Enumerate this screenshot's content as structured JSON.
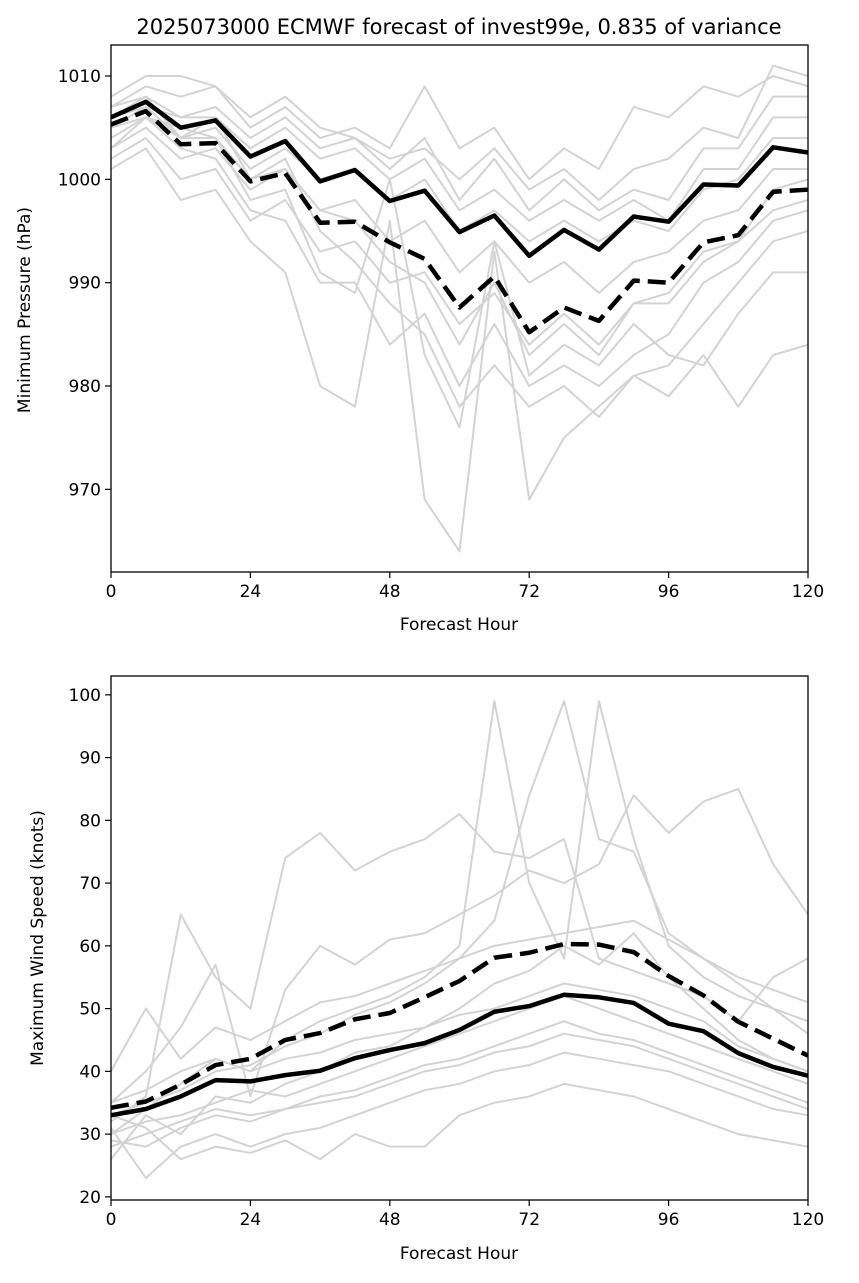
{
  "page_title": "2025073000 ECMWF forecast of invest99e, 0.835 of variance",
  "colors": {
    "ensemble": "#d3d3d3",
    "mean": "#000000",
    "axes": "#000000",
    "background": "#ffffff"
  },
  "chart_data": [
    {
      "type": "line",
      "title": "2025073000 ECMWF forecast of invest99e, 0.835 of variance",
      "xlabel": "Forecast Hour",
      "ylabel": "Minimum Pressure (hPa)",
      "xlim": [
        0,
        120
      ],
      "ylim": [
        962,
        1013
      ],
      "xticks": [
        0,
        24,
        48,
        72,
        96,
        120
      ],
      "yticks": [
        970,
        980,
        990,
        1000,
        1010
      ],
      "grid": false,
      "x": [
        0,
        6,
        12,
        18,
        24,
        30,
        36,
        42,
        48,
        54,
        60,
        66,
        72,
        78,
        84,
        90,
        96,
        102,
        108,
        114,
        120
      ],
      "mean_series": [
        {
          "style": "solid",
          "values": [
            1006.0,
            1007.5,
            1005.0,
            1005.7,
            1002.2,
            1003.7,
            999.8,
            1000.9,
            997.9,
            998.9,
            994.9,
            996.5,
            992.6,
            995.1,
            993.2,
            996.4,
            995.9,
            999.5,
            999.4,
            1003.1,
            1002.6
          ]
        },
        {
          "style": "dashed",
          "values": [
            1005.3,
            1006.6,
            1003.4,
            1003.5,
            999.8,
            1000.6,
            995.8,
            995.9,
            993.9,
            992.3,
            987.6,
            990.6,
            985.2,
            987.6,
            986.3,
            990.2,
            990.0,
            993.9,
            994.6,
            998.8,
            999.0
          ]
        }
      ],
      "members": [
        [
          1008,
          1010,
          1010,
          1009,
          1006,
          1008,
          1005,
          1004,
          1002,
          1003,
          1000,
          1003,
          999,
          1001,
          998,
          1001,
          1002,
          1005,
          1004,
          1011,
          1010
        ],
        [
          1007,
          1009,
          1008,
          1009,
          1005,
          1007,
          1004,
          1005,
          1003,
          1009,
          1003,
          1005,
          1000,
          1003,
          1001,
          1007,
          1006,
          1009,
          1008,
          1010,
          1009
        ],
        [
          1006,
          1008,
          1006,
          1007,
          1004,
          1006,
          1003,
          1004,
          1001,
          1004,
          998,
          1002,
          997,
          1000,
          997,
          999,
          998,
          1003,
          1003,
          1008,
          1008
        ],
        [
          1005,
          1007,
          1006,
          1006,
          1003,
          1005,
          1002,
          1003,
          1000,
          1002,
          997,
          999,
          996,
          998,
          996,
          998,
          996,
          1001,
          1001,
          1006,
          1006
        ],
        [
          1004,
          1006,
          1004,
          1005,
          1001,
          1003,
          1000,
          1001,
          998,
          1000,
          995,
          997,
          994,
          996,
          994,
          996,
          995,
          999,
          1000,
          1004,
          1004
        ],
        [
          1003,
          1005,
          1002,
          1003,
          999,
          1001,
          997,
          998,
          994,
          996,
          991,
          994,
          990,
          992,
          989,
          992,
          993,
          996,
          997,
          1001,
          1001
        ],
        [
          1002,
          1004,
          1000,
          1001,
          996,
          998,
          993,
          994,
          990,
          991,
          986,
          989,
          984,
          987,
          984,
          988,
          988,
          992,
          994,
          997,
          998
        ],
        [
          1001,
          1003,
          998,
          999,
          994,
          991,
          980,
          978,
          996,
          969,
          964,
          993,
          969,
          975,
          978,
          981,
          979,
          983,
          978,
          983,
          984
        ],
        [
          1007,
          1008,
          1004,
          1006,
          1000,
          1002,
          995,
          992,
          988,
          985,
          978,
          982,
          978,
          980,
          977,
          981,
          982,
          986,
          990,
          994,
          995
        ],
        [
          1005,
          1006,
          1003,
          1002,
          997,
          996,
          990,
          990,
          984,
          987,
          980,
          986,
          980,
          982,
          980,
          983,
          985,
          990,
          992,
          996,
          997
        ],
        [
          1006,
          1007,
          1004,
          1004,
          998,
          999,
          991,
          989,
          1000,
          983,
          976,
          994,
          981,
          984,
          982,
          986,
          983,
          982,
          987,
          991,
          991
        ],
        [
          1003,
          1006,
          1005,
          1004,
          1000,
          1001,
          997,
          996,
          992,
          990,
          984,
          990,
          983,
          986,
          983,
          988,
          989,
          993,
          994,
          999,
          1000
        ]
      ]
    },
    {
      "type": "line",
      "title": "",
      "xlabel": "Forecast Hour",
      "ylabel": "Maximum Wind Speed (knots)",
      "xlim": [
        0,
        120
      ],
      "ylim": [
        19.5,
        103
      ],
      "xticks": [
        0,
        24,
        48,
        72,
        96,
        120
      ],
      "yticks": [
        20,
        30,
        40,
        50,
        60,
        70,
        80,
        90,
        100
      ],
      "grid": false,
      "x": [
        0,
        6,
        12,
        18,
        24,
        30,
        36,
        42,
        48,
        54,
        60,
        66,
        72,
        78,
        84,
        90,
        96,
        102,
        108,
        114,
        120
      ],
      "mean_series": [
        {
          "style": "solid",
          "values": [
            33.0,
            34.0,
            36.0,
            38.6,
            38.4,
            39.4,
            40.1,
            42.1,
            43.4,
            44.5,
            46.6,
            49.5,
            50.4,
            52.2,
            51.8,
            50.9,
            47.6,
            46.4,
            42.9,
            40.7,
            39.3
          ]
        },
        {
          "style": "dashed",
          "values": [
            34.2,
            35.2,
            37.9,
            41.0,
            42.0,
            45.0,
            46.1,
            48.3,
            49.3,
            51.8,
            54.4,
            58.1,
            58.9,
            60.3,
            60.2,
            59.0,
            55.2,
            52.1,
            47.9,
            45.2,
            42.5
          ]
        }
      ],
      "members": [
        [
          32,
          36,
          65,
          55,
          50,
          74,
          78,
          72,
          75,
          77,
          81,
          75,
          74,
          77,
          58,
          56,
          54,
          52,
          48,
          55,
          58
        ],
        [
          30,
          34,
          38,
          42,
          40,
          45,
          48,
          50,
          52,
          55,
          60,
          99,
          70,
          58,
          99,
          77,
          60,
          55,
          52,
          50,
          46
        ],
        [
          33,
          35,
          37,
          40,
          41,
          44,
          46,
          49,
          51,
          54,
          58,
          64,
          84,
          99,
          77,
          75,
          62,
          58,
          54,
          50,
          48
        ],
        [
          35,
          40,
          47,
          57,
          36,
          53,
          60,
          57,
          61,
          62,
          65,
          68,
          72,
          70,
          73,
          84,
          78,
          83,
          85,
          73,
          65
        ],
        [
          26,
          33,
          30,
          36,
          35,
          38,
          40,
          43,
          44,
          47,
          50,
          54,
          56,
          60,
          57,
          62,
          55,
          50,
          45,
          42,
          40
        ],
        [
          30,
          32,
          33,
          35,
          37,
          36,
          38,
          40,
          42,
          44,
          46,
          48,
          50,
          52,
          50,
          48,
          46,
          44,
          42,
          40,
          38
        ],
        [
          35,
          37,
          40,
          42,
          40,
          42,
          43,
          45,
          46,
          47,
          49,
          50,
          52,
          54,
          53,
          52,
          50,
          48,
          44,
          42,
          40
        ],
        [
          28,
          30,
          32,
          34,
          33,
          34,
          36,
          37,
          39,
          41,
          42,
          44,
          46,
          48,
          46,
          45,
          43,
          41,
          39,
          37,
          35
        ],
        [
          31,
          23,
          28,
          30,
          28,
          30,
          31,
          33,
          35,
          37,
          38,
          40,
          41,
          43,
          42,
          41,
          40,
          38,
          36,
          34,
          33
        ],
        [
          33,
          31,
          26,
          28,
          27,
          29,
          26,
          30,
          28,
          28,
          33,
          35,
          36,
          38,
          37,
          36,
          34,
          32,
          30,
          29,
          28
        ],
        [
          40,
          50,
          42,
          47,
          45,
          48,
          51,
          52,
          54,
          56,
          58,
          60,
          61,
          62,
          63,
          64,
          61,
          58,
          55,
          53,
          51
        ],
        [
          29,
          28,
          31,
          33,
          32,
          34,
          35,
          36,
          38,
          40,
          41,
          43,
          44,
          46,
          45,
          44,
          42,
          40,
          38,
          36,
          34
        ]
      ]
    }
  ]
}
